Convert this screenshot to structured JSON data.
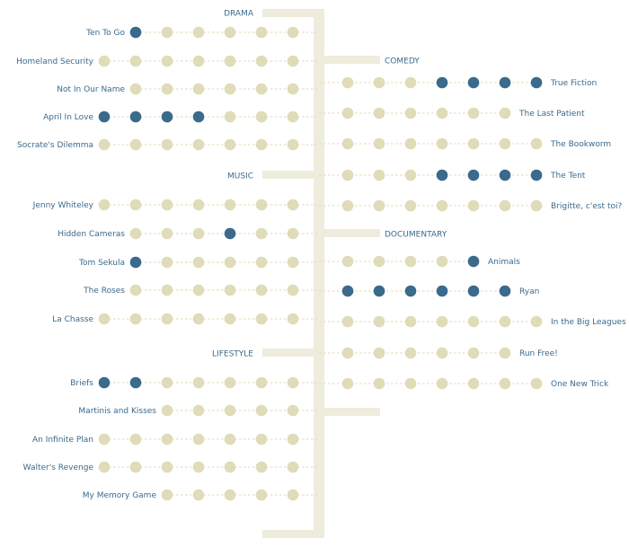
{
  "colors": {
    "empty_dot": "#e0dbb8",
    "filled_dot": "#3a6a8c",
    "connector": "#e6e1c2",
    "spine": "#eeecdc",
    "text": "#3a6a8c"
  },
  "sections": [
    {
      "key": "drama",
      "label": "DRAMA",
      "side": "left",
      "rows": [
        {
          "title": "Ten To Go",
          "dots": [
            1,
            0,
            0,
            0,
            0,
            0
          ]
        },
        {
          "title": "Homeland Security",
          "dots": [
            0,
            0,
            0,
            0,
            0,
            0,
            0
          ]
        },
        {
          "title": "Not In Our Name",
          "dots": [
            0,
            0,
            0,
            0,
            0,
            0
          ]
        },
        {
          "title": "April In Love",
          "dots": [
            1,
            1,
            1,
            1,
            0,
            0,
            0
          ]
        },
        {
          "title": "Socrate's Dilemma",
          "dots": [
            0,
            0,
            0,
            0,
            0,
            0,
            0
          ]
        }
      ]
    },
    {
      "key": "music",
      "label": "MUSIC",
      "side": "left",
      "rows": [
        {
          "title": "Jenny Whiteley",
          "dots": [
            0,
            0,
            0,
            0,
            0,
            0,
            0
          ]
        },
        {
          "title": "Hidden Cameras",
          "dots": [
            0,
            0,
            0,
            1,
            0,
            0
          ]
        },
        {
          "title": "Tom Sekula",
          "dots": [
            1,
            0,
            0,
            0,
            0,
            0
          ]
        },
        {
          "title": "The Roses",
          "dots": [
            0,
            0,
            0,
            0,
            0,
            0
          ]
        },
        {
          "title": "La Chasse",
          "dots": [
            0,
            0,
            0,
            0,
            0,
            0,
            0
          ]
        }
      ]
    },
    {
      "key": "lifestyle",
      "label": "LIFESTYLE",
      "side": "left",
      "rows": [
        {
          "title": "Briefs",
          "dots": [
            1,
            1,
            0,
            0,
            0,
            0,
            0
          ]
        },
        {
          "title": "Martinis and Kisses",
          "dots": [
            0,
            0,
            0,
            0,
            0
          ]
        },
        {
          "title": "An Infinite Plan",
          "dots": [
            0,
            0,
            0,
            0,
            0,
            0,
            0
          ]
        },
        {
          "title": "Walter's Revenge",
          "dots": [
            0,
            0,
            0,
            0,
            0,
            0,
            0
          ]
        },
        {
          "title": "My Memory Game",
          "dots": [
            0,
            0,
            0,
            0,
            0
          ]
        }
      ]
    },
    {
      "key": "comedy",
      "label": "COMEDY",
      "side": "right",
      "rows": [
        {
          "title": "True Fiction",
          "dots": [
            0,
            0,
            0,
            1,
            1,
            1,
            1
          ]
        },
        {
          "title": "The Last Patient",
          "dots": [
            0,
            0,
            0,
            0,
            0,
            0
          ]
        },
        {
          "title": "The Bookworm",
          "dots": [
            0,
            0,
            0,
            0,
            0,
            0,
            0
          ]
        },
        {
          "title": "The Tent",
          "dots": [
            0,
            0,
            0,
            1,
            1,
            1,
            1
          ]
        },
        {
          "title": "Brigitte, c'est toi?",
          "dots": [
            0,
            0,
            0,
            0,
            0,
            0,
            0
          ]
        }
      ]
    },
    {
      "key": "documentary",
      "label": "DOCUMENTARY",
      "side": "right",
      "rows": [
        {
          "title": "Animals",
          "dots": [
            0,
            0,
            0,
            0,
            1
          ]
        },
        {
          "title": "Ryan",
          "dots": [
            1,
            1,
            1,
            1,
            1,
            1
          ]
        },
        {
          "title": "In the Big Leagues",
          "dots": [
            0,
            0,
            0,
            0,
            0,
            0,
            0
          ]
        },
        {
          "title": "Run Free!",
          "dots": [
            0,
            0,
            0,
            0,
            0,
            0
          ]
        },
        {
          "title": "One New Trick",
          "dots": [
            0,
            0,
            0,
            0,
            0,
            0,
            0
          ]
        }
      ]
    }
  ]
}
